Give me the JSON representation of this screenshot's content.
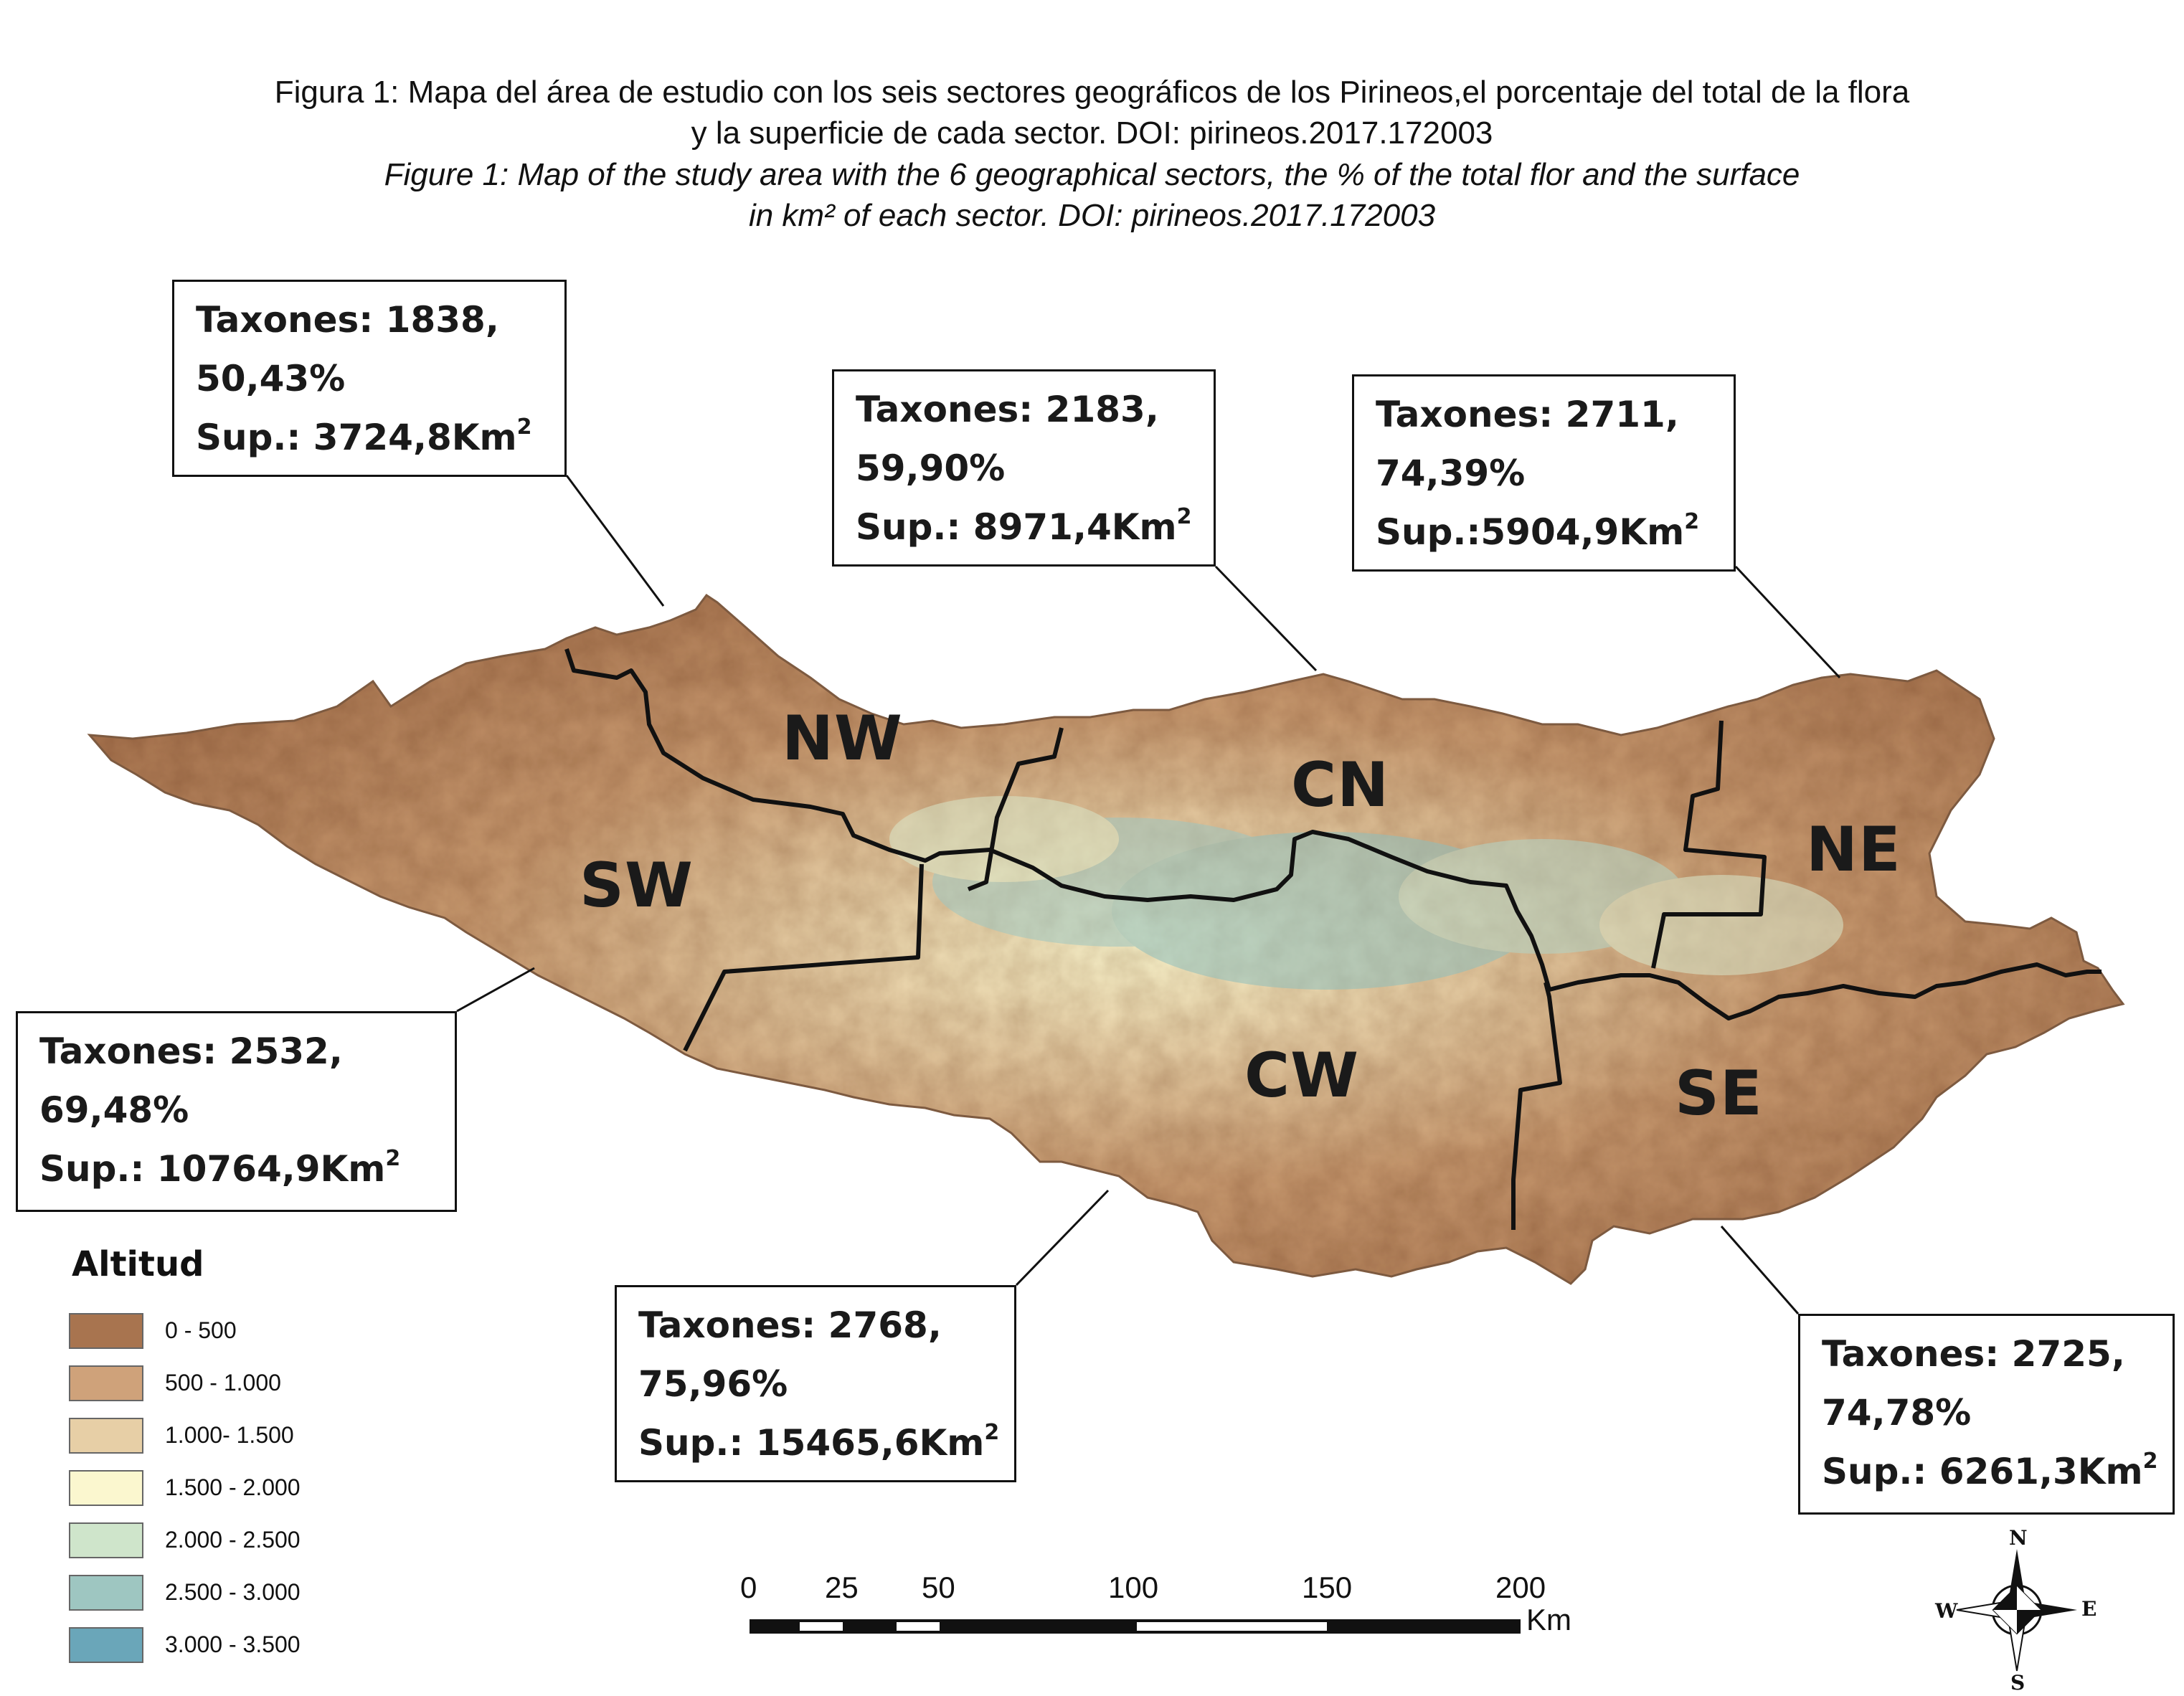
{
  "caption": {
    "spanish": [
      "Figura 1: Mapa del área de estudio con los seis sectores geográficos de los Pirineos,el porcentaje del total de la flora",
      "y la superficie de cada sector. DOI: pirineos.2017.172003"
    ],
    "english": [
      "Figure 1: Map of  the study area with the 6 geographical sectors, the % of the total flor  and  the  surface",
      "in  km² of  each sector. DOI: pirineos.2017.172003"
    ]
  },
  "sectors": {
    "nw": {
      "label": "NW",
      "taxa": "Taxones: 1838,",
      "percent": "50,43%",
      "surface_prefix": "Sup.: 3724,8Km",
      "surface_sup": "2"
    },
    "cn": {
      "label": "CN",
      "taxa": "Taxones: 2183,",
      "percent": "59,90%",
      "surface_prefix": "Sup.: 8971,4Km",
      "surface_sup": "2"
    },
    "ne": {
      "label": "NE",
      "taxa": "Taxones: 2711,",
      "percent": "74,39%",
      "surface_prefix": "Sup.:5904,9Km",
      "surface_sup": "2"
    },
    "sw": {
      "label": "SW",
      "taxa": "Taxones: 2532,",
      "percent": "69,48%",
      "surface_prefix": "Sup.: 10764,9Km",
      "surface_sup": "2"
    },
    "cw": {
      "label": "CW",
      "taxa": "Taxones: 2768,",
      "percent": "75,96%",
      "surface_prefix": "Sup.: 15465,6Km",
      "surface_sup": "2"
    },
    "se": {
      "label": "SE",
      "taxa": "Taxones: 2725,",
      "percent": "74,78%",
      "surface_prefix": "Sup.: 6261,3Km",
      "surface_sup": "2"
    }
  },
  "legend": {
    "title": "Altitud",
    "items": [
      {
        "label": "0 - 500",
        "color": "#a8744f"
      },
      {
        "label": "500 - 1.000",
        "color": "#cfa27a"
      },
      {
        "label": "1.000- 1.500",
        "color": "#e7cfa6"
      },
      {
        "label": "1.500 - 2.000",
        "color": "#fbf7cf"
      },
      {
        "label": "2.000 - 2.500",
        "color": "#cfe5cb"
      },
      {
        "label": "2.500 - 3.000",
        "color": "#9ec6c1"
      },
      {
        "label": "3.000 - 3.500",
        "color": "#6aa6b9"
      }
    ]
  },
  "scale_bar": {
    "ticks": [
      "0",
      "25",
      "50",
      "100",
      "150",
      "200"
    ],
    "unit": "Km"
  },
  "compass": {
    "north": "N",
    "south": "S",
    "east": "E",
    "west": "W"
  }
}
